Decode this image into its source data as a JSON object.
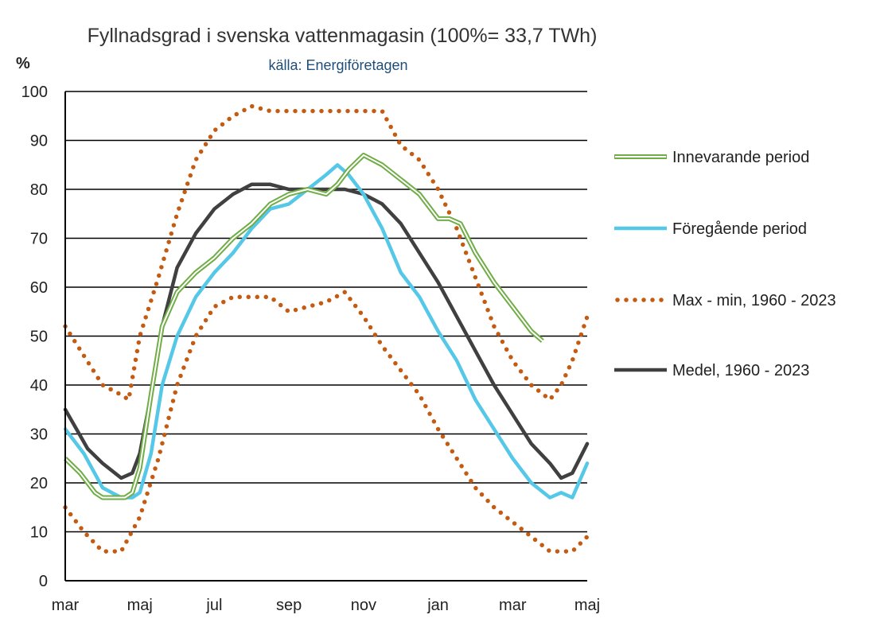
{
  "chart_data": {
    "type": "line",
    "title": "Fyllnadsgrad i svenska vattenmagasin (100%= 33,7 TWh)",
    "subtitle": "källa: Energiföretagen",
    "ylabel": "%",
    "ylim": [
      0,
      100
    ],
    "yticks": [
      0,
      10,
      20,
      30,
      40,
      50,
      60,
      70,
      80,
      90,
      100
    ],
    "xlim": [
      0,
      14
    ],
    "x_tick_positions": [
      0,
      2,
      4,
      6,
      8,
      10,
      12,
      14
    ],
    "x_tick_labels": [
      "mar",
      "maj",
      "jul",
      "sep",
      "nov",
      "jan",
      "mar",
      "maj"
    ],
    "grid": "horizontal",
    "legend_position": "right",
    "series": [
      {
        "name": "Max - min, 1960 - 2023 (max)",
        "style": "dotted",
        "color": "#c55a11",
        "x": [
          0,
          0.5,
          1.0,
          1.5,
          1.7,
          2.0,
          2.5,
          3.0,
          3.5,
          4.0,
          4.5,
          5.0,
          5.5,
          6.0,
          6.5,
          7.0,
          7.5,
          8.0,
          8.5,
          9.0,
          9.5,
          10.0,
          10.5,
          11.0,
          11.5,
          12.0,
          12.5,
          13.0,
          13.3,
          13.6,
          14.0
        ],
        "values": [
          52,
          46,
          40,
          38,
          37,
          50,
          62,
          75,
          86,
          92,
          95,
          97,
          96,
          96,
          96,
          96,
          96,
          96,
          96,
          89,
          86,
          80,
          72,
          62,
          52,
          45,
          40,
          37,
          40,
          45,
          54
        ]
      },
      {
        "name": "Max - min, 1960 - 2023 (min)",
        "style": "dotted",
        "color": "#c55a11",
        "x": [
          0,
          0.5,
          1.0,
          1.5,
          2.0,
          2.5,
          3.0,
          3.5,
          4.0,
          4.5,
          5.0,
          5.5,
          6.0,
          6.5,
          7.0,
          7.5,
          8.0,
          8.5,
          9.0,
          9.5,
          10.0,
          10.5,
          11.0,
          11.5,
          12.0,
          12.5,
          13.0,
          13.3,
          13.6,
          14.0
        ],
        "values": [
          15,
          10,
          6,
          6,
          13,
          25,
          40,
          50,
          56,
          58,
          58,
          58,
          55,
          56,
          57,
          59,
          54,
          48,
          43,
          38,
          31,
          25,
          19,
          15,
          12,
          9,
          6,
          6,
          6,
          9
        ]
      },
      {
        "name": "Medel, 1960 - 2023",
        "style": "solid",
        "color": "#404040",
        "x": [
          0,
          0.3,
          0.6,
          1.0,
          1.5,
          1.8,
          2.0,
          2.3,
          2.6,
          3.0,
          3.5,
          4.0,
          4.5,
          5.0,
          5.5,
          6.0,
          6.5,
          7.0,
          7.5,
          8.0,
          8.5,
          9.0,
          9.5,
          10.0,
          10.5,
          11.0,
          11.5,
          12.0,
          12.5,
          13.0,
          13.3,
          13.6,
          14.0
        ],
        "values": [
          35,
          31,
          27,
          24,
          21,
          22,
          26,
          38,
          52,
          64,
          71,
          76,
          79,
          81,
          81,
          80,
          80,
          80,
          80,
          79,
          77,
          73,
          67,
          61,
          54,
          47,
          40,
          34,
          28,
          24,
          21,
          22,
          28
        ]
      },
      {
        "name": "Föregående period",
        "style": "solid",
        "color": "#55c8e8",
        "x": [
          0,
          0.5,
          1.0,
          1.5,
          1.8,
          2.0,
          2.3,
          2.6,
          3.0,
          3.5,
          4.0,
          4.5,
          5.0,
          5.5,
          6.0,
          6.5,
          7.0,
          7.3,
          7.6,
          8.0,
          8.5,
          9.0,
          9.5,
          10.0,
          10.5,
          11.0,
          11.5,
          12.0,
          12.5,
          13.0,
          13.3,
          13.6,
          14.0
        ],
        "values": [
          31,
          26,
          19,
          17,
          17,
          18,
          26,
          40,
          50,
          58,
          63,
          67,
          72,
          76,
          77,
          80,
          83,
          85,
          83,
          79,
          72,
          63,
          58,
          51,
          45,
          37,
          31,
          25,
          20,
          17,
          18,
          17,
          24
        ]
      },
      {
        "name": "Innevarande period",
        "style": "double",
        "color": "#70ad47",
        "x": [
          0,
          0.4,
          0.8,
          1.0,
          1.3,
          1.6,
          1.8,
          2.0,
          2.3,
          2.6,
          3.0,
          3.5,
          4.0,
          4.5,
          5.0,
          5.5,
          6.0,
          6.5,
          7.0,
          7.3,
          7.6,
          8.0,
          8.5,
          9.0,
          9.5,
          10.0,
          10.3,
          10.6,
          11.0,
          11.5,
          12.0,
          12.5,
          12.8
        ],
        "values": [
          25,
          22,
          18,
          17,
          17,
          17,
          18,
          23,
          38,
          52,
          59,
          63,
          66,
          70,
          73,
          77,
          79,
          80,
          79,
          81,
          84,
          87,
          85,
          82,
          79,
          74,
          74,
          73,
          67,
          61,
          56,
          51,
          49
        ]
      }
    ],
    "legend": [
      {
        "label": "Innevarande period",
        "style": "double",
        "color": "#70ad47"
      },
      {
        "label": "Föregående period",
        "style": "solid",
        "color": "#55c8e8"
      },
      {
        "label": "Max - min, 1960 - 2023",
        "style": "dotted",
        "color": "#c55a11"
      },
      {
        "label": "Medel, 1960 - 2023",
        "style": "solid",
        "color": "#404040"
      }
    ]
  }
}
